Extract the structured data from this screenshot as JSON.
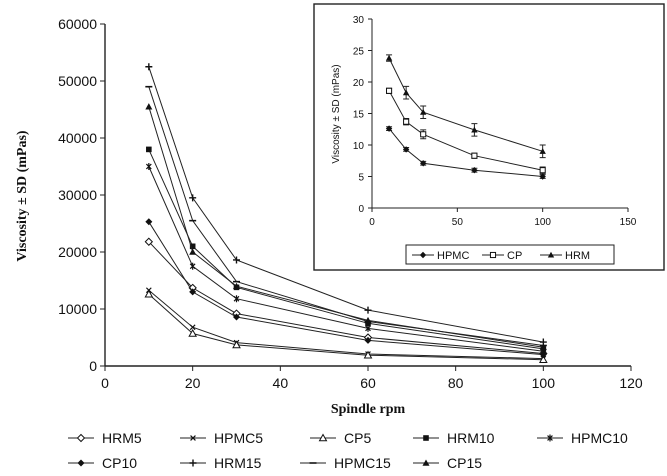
{
  "chart_data": [
    {
      "type": "line",
      "xlabel": "Spindle rpm",
      "ylabel": "Viscosity ± SD (mPas)",
      "xlim": [
        0,
        120
      ],
      "ylim": [
        0,
        60000
      ],
      "xticks": [
        0,
        20,
        40,
        60,
        80,
        100,
        120
      ],
      "yticks": [
        0,
        10000,
        20000,
        30000,
        40000,
        50000,
        60000
      ],
      "x": [
        10,
        20,
        30,
        60,
        100
      ],
      "grid": false,
      "legend_position": "bottom",
      "series": [
        {
          "name": "HRM5",
          "marker": "diamond-open",
          "values": [
            21800,
            13700,
            9200,
            5000,
            2200
          ]
        },
        {
          "name": "HPMC5",
          "marker": "x",
          "values": [
            13300,
            6800,
            4100,
            2100,
            1300
          ]
        },
        {
          "name": "CP5",
          "marker": "triangle-open",
          "values": [
            12600,
            5700,
            3700,
            1900,
            1100
          ]
        },
        {
          "name": "HRM10",
          "marker": "square",
          "values": [
            38000,
            21000,
            13800,
            7500,
            3000
          ]
        },
        {
          "name": "HPMC10",
          "marker": "star",
          "values": [
            35000,
            17500,
            11800,
            6600,
            2600
          ]
        },
        {
          "name": "CP10",
          "marker": "diamond",
          "values": [
            25300,
            13000,
            8600,
            4500,
            2000
          ]
        },
        {
          "name": "HRM15",
          "marker": "plus",
          "values": [
            52500,
            29500,
            18600,
            9800,
            4200
          ]
        },
        {
          "name": "HPMC15",
          "marker": "dash",
          "values": [
            49000,
            25500,
            14800,
            7800,
            3600
          ]
        },
        {
          "name": "CP15",
          "marker": "triangle",
          "values": [
            45500,
            20000,
            14000,
            8000,
            3300
          ]
        }
      ]
    },
    {
      "type": "line",
      "xlabel": "",
      "ylabel": "Viscosity ± SD (mPas)",
      "xlim": [
        0,
        150
      ],
      "ylim": [
        0,
        30
      ],
      "xticks": [
        0,
        50,
        100,
        150
      ],
      "yticks": [
        0,
        5,
        10,
        15,
        20,
        25,
        30
      ],
      "x": [
        10,
        20,
        30,
        60,
        100
      ],
      "grid": false,
      "legend_position": "bottom",
      "series": [
        {
          "name": "HPMC",
          "marker": "diamond",
          "values": [
            12.6,
            9.3,
            7.1,
            6.0,
            5.0
          ],
          "errors": [
            0.3,
            0.3,
            0.3,
            0.3,
            0.3
          ]
        },
        {
          "name": "CP",
          "marker": "square-open",
          "values": [
            18.6,
            13.7,
            11.7,
            8.3,
            6.0
          ],
          "errors": [
            0.4,
            0.5,
            0.7,
            0.4,
            0.5
          ]
        },
        {
          "name": "HRM",
          "marker": "triangle",
          "values": [
            23.8,
            18.3,
            15.2,
            12.4,
            9.0
          ],
          "errors": [
            0.5,
            1.0,
            1.0,
            1.0,
            1.0
          ]
        }
      ]
    }
  ]
}
